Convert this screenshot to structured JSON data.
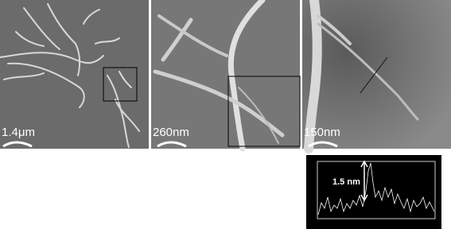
{
  "panels": [
    {
      "scale_label": "1.4μm"
    },
    {
      "scale_label": "260nm"
    },
    {
      "scale_label": "150nm"
    }
  ],
  "profile": {
    "height_label": "1.5 nm"
  }
}
